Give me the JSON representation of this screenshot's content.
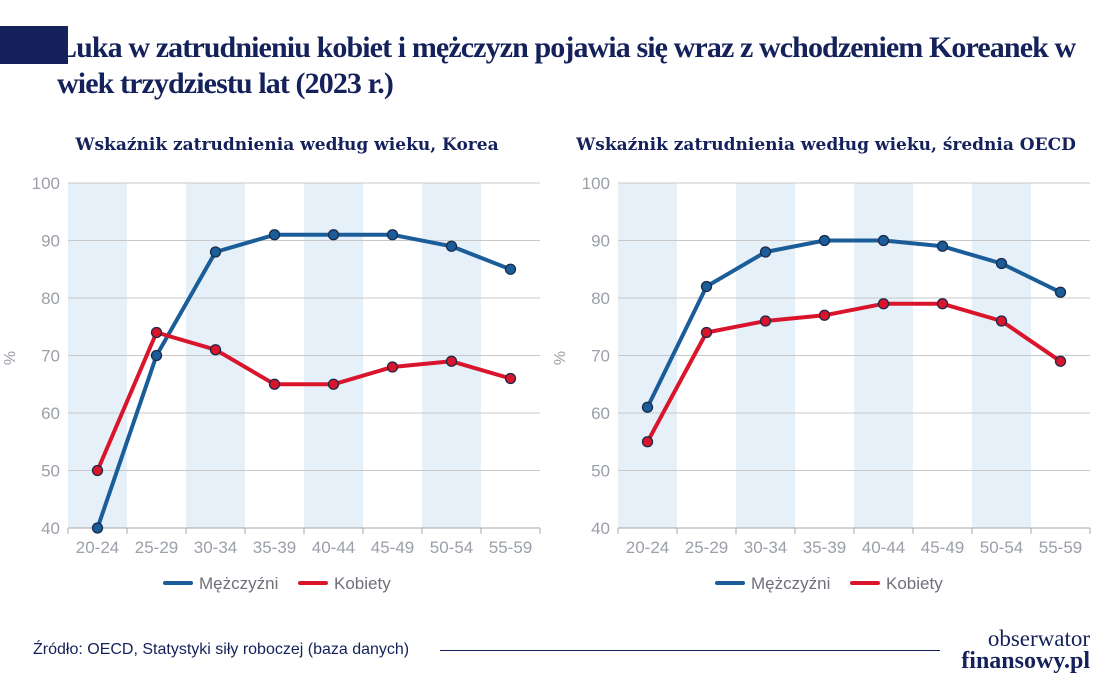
{
  "title": "Luka w zatrudnieniu kobiet i mężczyzn pojawia się wraz z wchodzeniem Koreanek w wiek trzydziestu lat (2023 r.)",
  "source": "Źródło: OECD, Statystyki siły roboczej (baza danych)",
  "logo": {
    "line1": "obserwator",
    "line2": "finansowy.pl"
  },
  "colors": {
    "men": "#1a5d99",
    "women": "#d9152b",
    "band": "#e6f0f9",
    "axis": "#c8c8c8",
    "text": "#14215a"
  },
  "chart_data": [
    {
      "type": "line",
      "title": "Wskaźnik zatrudnienia według wieku, Korea",
      "ylabel": "%",
      "ylim": [
        40,
        100
      ],
      "yticks": [
        40,
        50,
        60,
        70,
        80,
        90,
        100
      ],
      "categories": [
        "20-24",
        "25-29",
        "30-34",
        "35-39",
        "40-44",
        "45-49",
        "50-54",
        "55-59"
      ],
      "series": [
        {
          "name": "Mężczyźni",
          "values": [
            40,
            70,
            88,
            91,
            91,
            91,
            89,
            85
          ]
        },
        {
          "name": "Kobiety",
          "values": [
            50,
            74,
            71,
            65,
            65,
            68,
            69,
            66
          ]
        }
      ],
      "grid": true,
      "legend": "bottom"
    },
    {
      "type": "line",
      "title": "Wskaźnik zatrudnienia według wieku, średnia OECD",
      "ylabel": "%",
      "ylim": [
        40,
        100
      ],
      "yticks": [
        40,
        50,
        60,
        70,
        80,
        90,
        100
      ],
      "categories": [
        "20-24",
        "25-29",
        "30-34",
        "35-39",
        "40-44",
        "45-49",
        "50-54",
        "55-59"
      ],
      "series": [
        {
          "name": "Mężczyźni",
          "values": [
            61,
            82,
            88,
            90,
            90,
            89,
            86,
            81
          ]
        },
        {
          "name": "Kobiety",
          "values": [
            55,
            74,
            76,
            77,
            79,
            79,
            76,
            69
          ]
        }
      ],
      "grid": true,
      "legend": "bottom"
    }
  ]
}
